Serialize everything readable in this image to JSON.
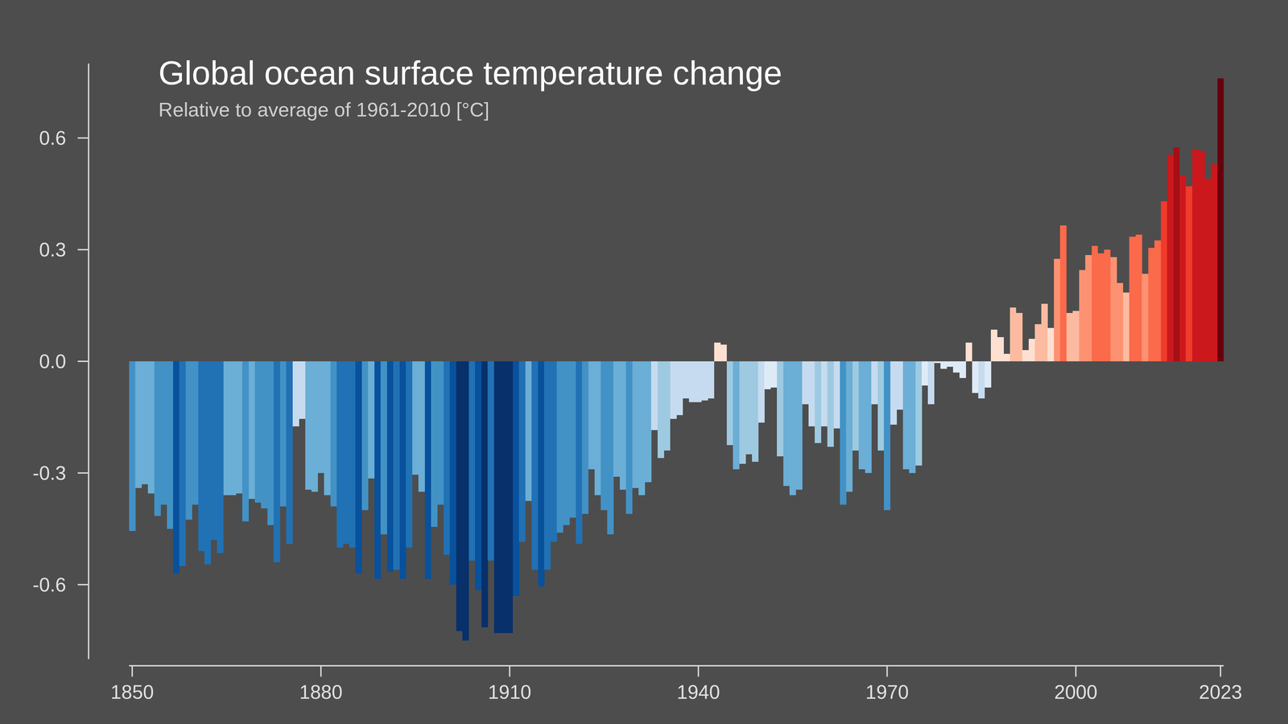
{
  "chart_data": {
    "type": "bar",
    "title": "Global ocean surface temperature change",
    "subtitle": "Relative to average of 1961-2010  [°C]",
    "x": [
      1850,
      1851,
      1852,
      1853,
      1854,
      1855,
      1856,
      1857,
      1858,
      1859,
      1860,
      1861,
      1862,
      1863,
      1864,
      1865,
      1866,
      1867,
      1868,
      1869,
      1870,
      1871,
      1872,
      1873,
      1874,
      1875,
      1876,
      1877,
      1878,
      1879,
      1880,
      1881,
      1882,
      1883,
      1884,
      1885,
      1886,
      1887,
      1888,
      1889,
      1890,
      1891,
      1892,
      1893,
      1894,
      1895,
      1896,
      1897,
      1898,
      1899,
      1900,
      1901,
      1902,
      1903,
      1904,
      1905,
      1906,
      1907,
      1908,
      1909,
      1910,
      1911,
      1912,
      1913,
      1914,
      1915,
      1916,
      1917,
      1918,
      1919,
      1920,
      1921,
      1922,
      1923,
      1924,
      1925,
      1926,
      1927,
      1928,
      1929,
      1930,
      1931,
      1932,
      1933,
      1934,
      1935,
      1936,
      1937,
      1938,
      1939,
      1940,
      1941,
      1942,
      1943,
      1944,
      1945,
      1946,
      1947,
      1948,
      1949,
      1950,
      1951,
      1952,
      1953,
      1954,
      1955,
      1956,
      1957,
      1958,
      1959,
      1960,
      1961,
      1962,
      1963,
      1964,
      1965,
      1966,
      1967,
      1968,
      1969,
      1970,
      1971,
      1972,
      1973,
      1974,
      1975,
      1976,
      1977,
      1978,
      1979,
      1980,
      1981,
      1982,
      1983,
      1984,
      1985,
      1986,
      1987,
      1988,
      1989,
      1990,
      1991,
      1992,
      1993,
      1994,
      1995,
      1996,
      1997,
      1998,
      1999,
      2000,
      2001,
      2002,
      2003,
      2004,
      2005,
      2006,
      2007,
      2008,
      2009,
      2010,
      2011,
      2012,
      2013,
      2014,
      2015,
      2016,
      2017,
      2018,
      2019,
      2020,
      2021,
      2022,
      2023
    ],
    "values": [
      -0.456,
      -0.34,
      -0.33,
      -0.355,
      -0.415,
      -0.385,
      -0.45,
      -0.57,
      -0.55,
      -0.425,
      -0.385,
      -0.51,
      -0.545,
      -0.48,
      -0.515,
      -0.36,
      -0.36,
      -0.355,
      -0.43,
      -0.37,
      -0.38,
      -0.395,
      -0.44,
      -0.54,
      -0.39,
      -0.49,
      -0.175,
      -0.155,
      -0.345,
      -0.35,
      -0.3,
      -0.36,
      -0.39,
      -0.5,
      -0.49,
      -0.5,
      -0.57,
      -0.4,
      -0.315,
      -0.585,
      -0.465,
      -0.565,
      -0.56,
      -0.585,
      -0.5,
      -0.305,
      -0.35,
      -0.585,
      -0.445,
      -0.385,
      -0.52,
      -0.6,
      -0.725,
      -0.75,
      -0.535,
      -0.615,
      -0.715,
      -0.535,
      -0.73,
      -0.73,
      -0.73,
      -0.63,
      -0.485,
      -0.375,
      -0.56,
      -0.605,
      -0.56,
      -0.485,
      -0.46,
      -0.44,
      -0.42,
      -0.49,
      -0.41,
      -0.29,
      -0.36,
      -0.4,
      -0.465,
      -0.31,
      -0.345,
      -0.41,
      -0.34,
      -0.36,
      -0.325,
      -0.185,
      -0.26,
      -0.24,
      -0.155,
      -0.145,
      -0.1,
      -0.11,
      -0.11,
      -0.105,
      -0.1,
      0.05,
      0.045,
      -0.225,
      -0.29,
      -0.275,
      -0.25,
      -0.27,
      -0.165,
      -0.075,
      -0.07,
      -0.255,
      -0.335,
      -0.36,
      -0.345,
      -0.115,
      -0.175,
      -0.22,
      -0.175,
      -0.23,
      -0.18,
      -0.385,
      -0.35,
      -0.24,
      -0.29,
      -0.3,
      -0.115,
      -0.24,
      -0.4,
      -0.17,
      -0.13,
      -0.29,
      -0.3,
      -0.28,
      -0.065,
      -0.115,
      -0.005,
      -0.02,
      -0.015,
      -0.03,
      -0.045,
      0.05,
      -0.085,
      -0.1,
      -0.07,
      0.085,
      0.065,
      0.02,
      0.145,
      0.13,
      0.03,
      0.06,
      0.1,
      0.155,
      0.09,
      0.275,
      0.365,
      0.13,
      0.135,
      0.245,
      0.285,
      0.31,
      0.29,
      0.3,
      0.28,
      0.21,
      0.185,
      0.335,
      0.34,
      0.235,
      0.305,
      0.325,
      0.43,
      0.555,
      0.575,
      0.5,
      0.47,
      0.57,
      0.565,
      0.49,
      0.53,
      0.76
    ],
    "xlim": [
      1849.5,
      2023.5
    ],
    "xticks": [
      1850,
      1880,
      1910,
      1940,
      1970,
      2000,
      2023
    ],
    "ylim": [
      -0.8,
      0.8
    ],
    "yticks": [
      -0.6,
      -0.3,
      {
        "value": 0,
        "label": "0.0"
      },
      0.3,
      0.6
    ],
    "grid": false
  }
}
